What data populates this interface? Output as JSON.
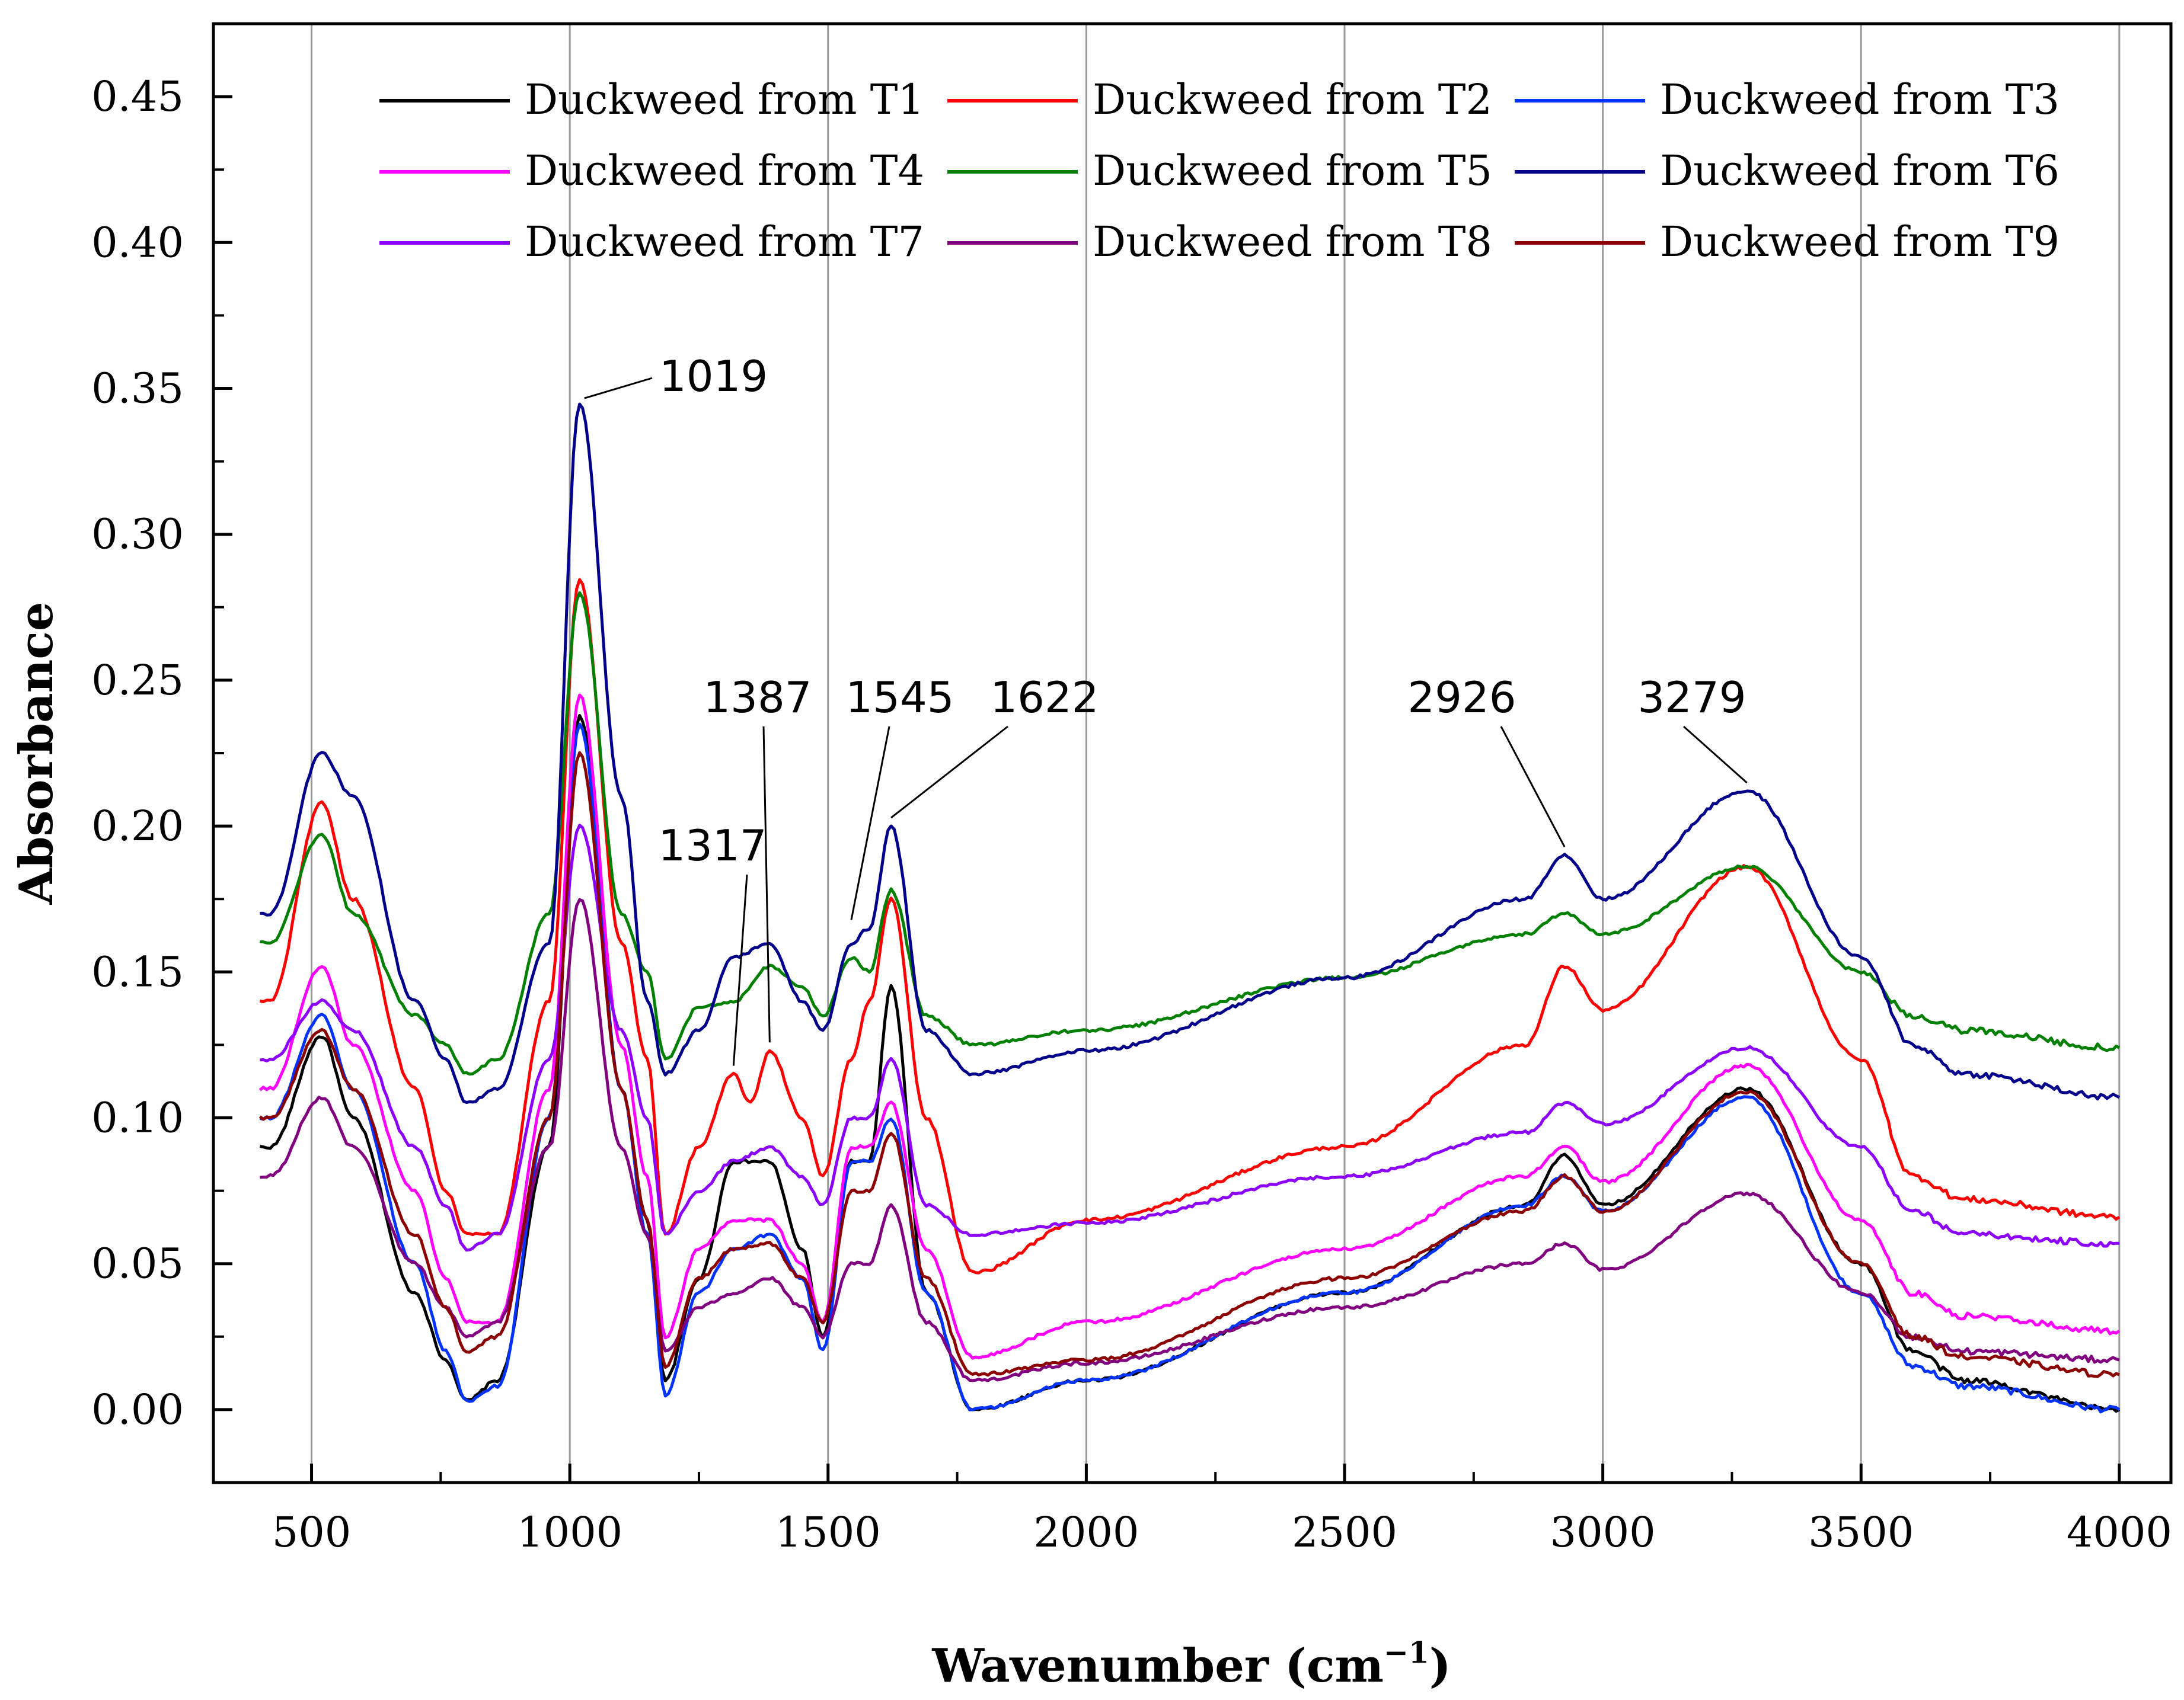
{
  "chart_data": {
    "type": "line",
    "title": "",
    "xlabel": "Wavenumber (cm",
    "xlabel_sup": "−1",
    "xlabel_close": ")",
    "ylabel": "Absorbance",
    "xlim": [
      310,
      4100
    ],
    "ylim": [
      -0.025,
      0.475
    ],
    "grid": "vertical",
    "legend_position": "top",
    "xticks": [
      500,
      1000,
      1500,
      2000,
      2500,
      3000,
      3500,
      4000
    ],
    "xtick_labels": [
      "500",
      "1000",
      "1500",
      "2000",
      "2500",
      "3000",
      "3500",
      "4000"
    ],
    "yticks": [
      0.0,
      0.05,
      0.1,
      0.15,
      0.2,
      0.25,
      0.3,
      0.35,
      0.4,
      0.45
    ],
    "ytick_labels": [
      "0.00",
      "0.05",
      "0.10",
      "0.15",
      "0.20",
      "0.25",
      "0.30",
      "0.35",
      "0.40",
      "0.45"
    ],
    "series": [
      {
        "name": "Duckweed from T1",
        "color": "#000000",
        "x": [
          400,
          420,
          520,
          580,
          700,
          760,
          800,
          860,
          960,
          1019,
          1100,
          1150,
          1185,
          1250,
          1317,
          1387,
          1450,
          1490,
          1545,
          1580,
          1622,
          1690,
          1780,
          2000,
          2500,
          2850,
          2926,
          3000,
          3279,
          3500,
          3600,
          3700,
          4000
        ],
        "y": [
          0.09,
          0.09,
          0.128,
          0.1,
          0.04,
          0.017,
          0.003,
          0.01,
          0.09,
          0.238,
          0.11,
          0.065,
          0.01,
          0.045,
          0.085,
          0.085,
          0.055,
          0.025,
          0.085,
          0.085,
          0.145,
          0.04,
          0.0,
          0.01,
          0.04,
          0.07,
          0.087,
          0.07,
          0.11,
          0.05,
          0.02,
          0.01,
          0.0
        ]
      },
      {
        "name": "Duckweed from T2",
        "color": "#ff0000",
        "x": [
          400,
          420,
          520,
          580,
          700,
          760,
          800,
          860,
          960,
          1019,
          1100,
          1150,
          1185,
          1250,
          1317,
          1350,
          1387,
          1450,
          1490,
          1545,
          1580,
          1622,
          1690,
          1780,
          2000,
          2500,
          2850,
          2926,
          3000,
          3279,
          3500,
          3600,
          3700,
          4000
        ],
        "y": [
          0.14,
          0.14,
          0.208,
          0.175,
          0.11,
          0.075,
          0.06,
          0.06,
          0.14,
          0.285,
          0.16,
          0.12,
          0.06,
          0.09,
          0.115,
          0.105,
          0.123,
          0.1,
          0.08,
          0.12,
          0.14,
          0.175,
          0.1,
          0.047,
          0.065,
          0.09,
          0.125,
          0.152,
          0.137,
          0.186,
          0.12,
          0.08,
          0.072,
          0.066
        ]
      },
      {
        "name": "Duckweed from T3",
        "color": "#0033ff",
        "x": [
          400,
          420,
          520,
          580,
          700,
          760,
          800,
          860,
          960,
          1019,
          1100,
          1150,
          1185,
          1250,
          1317,
          1387,
          1450,
          1490,
          1545,
          1580,
          1622,
          1690,
          1780,
          2000,
          2500,
          2850,
          2926,
          3000,
          3279,
          3500,
          3600,
          3700,
          4000
        ],
        "y": [
          0.1,
          0.1,
          0.135,
          0.11,
          0.05,
          0.02,
          0.003,
          0.008,
          0.1,
          0.235,
          0.11,
          0.06,
          0.005,
          0.04,
          0.055,
          0.06,
          0.045,
          0.02,
          0.085,
          0.085,
          0.1,
          0.04,
          0.0,
          0.01,
          0.04,
          0.07,
          0.08,
          0.068,
          0.107,
          0.04,
          0.015,
          0.008,
          0.0
        ]
      },
      {
        "name": "Duckweed from T4",
        "color": "#ff00ff",
        "x": [
          400,
          420,
          520,
          580,
          700,
          760,
          800,
          860,
          960,
          1019,
          1100,
          1150,
          1185,
          1250,
          1317,
          1387,
          1450,
          1490,
          1545,
          1580,
          1622,
          1690,
          1780,
          2000,
          2500,
          2850,
          2926,
          3000,
          3279,
          3500,
          3600,
          3700,
          4000
        ],
        "y": [
          0.11,
          0.11,
          0.152,
          0.125,
          0.075,
          0.045,
          0.03,
          0.03,
          0.11,
          0.245,
          0.125,
          0.08,
          0.025,
          0.055,
          0.065,
          0.065,
          0.05,
          0.03,
          0.09,
          0.09,
          0.105,
          0.055,
          0.018,
          0.03,
          0.055,
          0.08,
          0.09,
          0.078,
          0.118,
          0.065,
          0.04,
          0.032,
          0.027
        ]
      },
      {
        "name": "Duckweed from T5",
        "color": "#008000",
        "x": [
          400,
          420,
          520,
          580,
          700,
          760,
          800,
          860,
          960,
          1019,
          1100,
          1150,
          1185,
          1250,
          1317,
          1387,
          1450,
          1490,
          1545,
          1580,
          1622,
          1690,
          1780,
          2000,
          2500,
          2850,
          2926,
          3000,
          3279,
          3500,
          3600,
          3700,
          4000
        ],
        "y": [
          0.16,
          0.16,
          0.197,
          0.17,
          0.135,
          0.125,
          0.115,
          0.12,
          0.17,
          0.28,
          0.17,
          0.15,
          0.12,
          0.138,
          0.14,
          0.152,
          0.145,
          0.135,
          0.155,
          0.15,
          0.178,
          0.135,
          0.125,
          0.13,
          0.148,
          0.163,
          0.17,
          0.163,
          0.186,
          0.15,
          0.135,
          0.13,
          0.124
        ]
      },
      {
        "name": "Duckweed from T6",
        "color": "#00008b",
        "x": [
          400,
          420,
          520,
          580,
          700,
          760,
          800,
          860,
          960,
          1019,
          1100,
          1150,
          1185,
          1250,
          1317,
          1387,
          1450,
          1490,
          1545,
          1580,
          1622,
          1690,
          1780,
          2000,
          2500,
          2850,
          2926,
          3000,
          3279,
          3500,
          3600,
          3700,
          4000
        ],
        "y": [
          0.17,
          0.17,
          0.225,
          0.21,
          0.14,
          0.12,
          0.105,
          0.11,
          0.16,
          0.345,
          0.21,
          0.14,
          0.115,
          0.13,
          0.155,
          0.16,
          0.14,
          0.13,
          0.16,
          0.165,
          0.2,
          0.13,
          0.115,
          0.123,
          0.148,
          0.175,
          0.19,
          0.175,
          0.212,
          0.155,
          0.125,
          0.115,
          0.107
        ]
      },
      {
        "name": "Duckweed from T7",
        "color": "#8b00ff",
        "x": [
          400,
          420,
          520,
          580,
          700,
          760,
          800,
          860,
          960,
          1019,
          1100,
          1150,
          1185,
          1250,
          1317,
          1387,
          1450,
          1490,
          1545,
          1580,
          1622,
          1690,
          1780,
          2000,
          2500,
          2850,
          2926,
          3000,
          3279,
          3500,
          3600,
          3700,
          4000
        ],
        "y": [
          0.12,
          0.12,
          0.14,
          0.13,
          0.09,
          0.07,
          0.055,
          0.06,
          0.12,
          0.2,
          0.13,
          0.1,
          0.06,
          0.075,
          0.085,
          0.09,
          0.08,
          0.07,
          0.1,
          0.1,
          0.12,
          0.07,
          0.06,
          0.064,
          0.08,
          0.095,
          0.105,
          0.098,
          0.124,
          0.09,
          0.068,
          0.06,
          0.057
        ]
      },
      {
        "name": "Duckweed from T8",
        "color": "#800080",
        "x": [
          400,
          420,
          520,
          580,
          700,
          760,
          800,
          860,
          960,
          1019,
          1100,
          1150,
          1185,
          1250,
          1317,
          1387,
          1450,
          1490,
          1545,
          1580,
          1622,
          1690,
          1780,
          2000,
          2500,
          2850,
          2926,
          3000,
          3279,
          3500,
          3600,
          3700,
          4000
        ],
        "y": [
          0.08,
          0.08,
          0.107,
          0.09,
          0.05,
          0.035,
          0.025,
          0.03,
          0.09,
          0.175,
          0.09,
          0.06,
          0.02,
          0.035,
          0.04,
          0.045,
          0.035,
          0.025,
          0.05,
          0.05,
          0.07,
          0.03,
          0.01,
          0.016,
          0.035,
          0.05,
          0.057,
          0.048,
          0.074,
          0.04,
          0.025,
          0.02,
          0.017
        ]
      },
      {
        "name": "Duckweed from T9",
        "color": "#8b0000",
        "x": [
          400,
          420,
          520,
          580,
          700,
          760,
          800,
          860,
          960,
          1019,
          1100,
          1150,
          1185,
          1250,
          1317,
          1387,
          1450,
          1490,
          1545,
          1580,
          1622,
          1690,
          1780,
          2000,
          2500,
          2850,
          2926,
          3000,
          3279,
          3500,
          3600,
          3700,
          4000
        ],
        "y": [
          0.1,
          0.1,
          0.13,
          0.11,
          0.06,
          0.035,
          0.02,
          0.025,
          0.1,
          0.225,
          0.11,
          0.065,
          0.015,
          0.045,
          0.055,
          0.057,
          0.045,
          0.03,
          0.075,
          0.075,
          0.095,
          0.045,
          0.012,
          0.017,
          0.045,
          0.068,
          0.08,
          0.068,
          0.109,
          0.05,
          0.025,
          0.018,
          0.012
        ]
      }
    ],
    "annotations": [
      {
        "text": "1019",
        "x": 1019,
        "y": 0.345
      },
      {
        "text": "1317",
        "x": 1317,
        "y": 0.115
      },
      {
        "text": "1387",
        "x": 1387,
        "y": 0.123
      },
      {
        "text": "1545",
        "x": 1545,
        "y": 0.165
      },
      {
        "text": "1622",
        "x": 1622,
        "y": 0.2
      },
      {
        "text": "2926",
        "x": 2926,
        "y": 0.19
      },
      {
        "text": "3279",
        "x": 3279,
        "y": 0.212
      }
    ]
  }
}
